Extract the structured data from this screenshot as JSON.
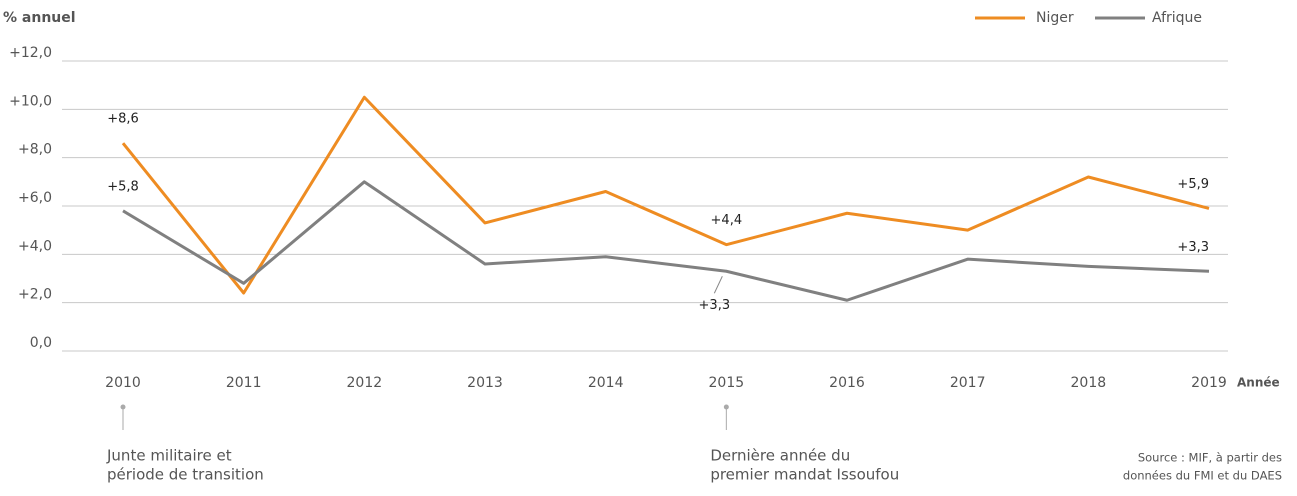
{
  "chart_data": {
    "type": "line",
    "y_axis_label": "% annuel",
    "x_axis_label": "Année",
    "categories": [
      "2010",
      "2011",
      "2012",
      "2013",
      "2014",
      "2015",
      "2016",
      "2017",
      "2018",
      "2019"
    ],
    "series": [
      {
        "name": "Niger",
        "color": "#ee8c22",
        "values": [
          8.6,
          2.4,
          10.5,
          5.3,
          6.6,
          4.4,
          5.7,
          5.0,
          7.2,
          5.9
        ],
        "value_labels": [
          "+8,6",
          null,
          null,
          null,
          null,
          "+4,4",
          null,
          null,
          null,
          "+5,9"
        ]
      },
      {
        "name": "Afrique",
        "color": "#808080",
        "values": [
          5.8,
          2.8,
          7.0,
          3.6,
          3.9,
          3.3,
          2.1,
          3.8,
          3.5,
          3.3
        ],
        "value_labels": [
          "+5,8",
          null,
          null,
          null,
          null,
          "+3,3",
          null,
          null,
          null,
          "+3,3"
        ]
      }
    ],
    "ylim": [
      0,
      12
    ],
    "yticks": [
      {
        "value": 0,
        "label": "0,0"
      },
      {
        "value": 2,
        "label": "+2,0"
      },
      {
        "value": 4,
        "label": "+4,0"
      },
      {
        "value": 6,
        "label": "+6,0"
      },
      {
        "value": 8,
        "label": "+8,0"
      },
      {
        "value": 10,
        "label": "+10,0"
      },
      {
        "value": 12,
        "label": "+12,0"
      }
    ],
    "grid": true,
    "legend": "top-right",
    "annotations": [
      {
        "x": "2010",
        "lines": [
          "Junte militaire et",
          "période de transition"
        ]
      },
      {
        "x": "2015",
        "lines": [
          "Dernière année du",
          "premier mandat Issoufou"
        ]
      }
    ],
    "source": [
      "Source : MIF, à partir des",
      "données du FMI et du DAES"
    ]
  }
}
